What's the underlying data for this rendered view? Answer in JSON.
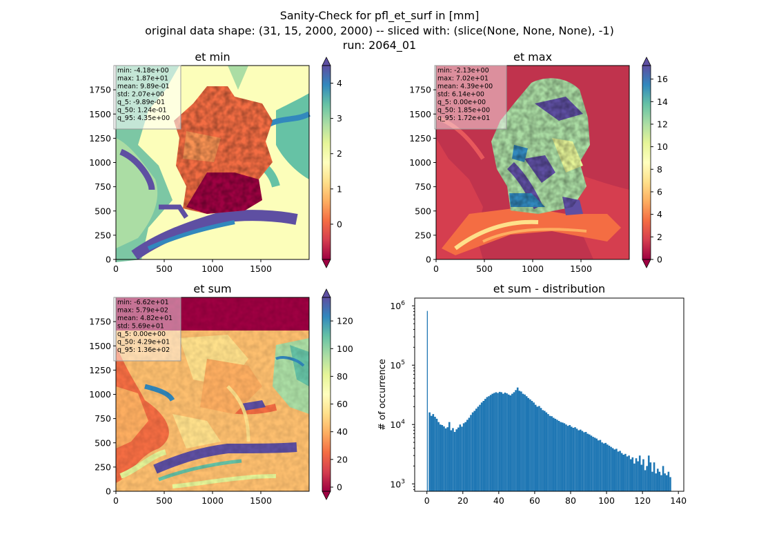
{
  "figure": {
    "title_lines": [
      "Sanity-Check for pfl_et_surf in [mm]",
      "original data shape: (31, 15, 2000, 2000) -- sliced with: (slice(None, None, None), -1)",
      "run: 2064_01"
    ]
  },
  "colors": {
    "spectral": [
      "#9e0142",
      "#d53e4f",
      "#f46d43",
      "#fdae61",
      "#fee08b",
      "#ffffbf",
      "#e6f598",
      "#abdda4",
      "#66c2a5",
      "#3288bd",
      "#5e4fa2"
    ],
    "histogram_bar": "#1f77b4"
  },
  "chart_data": [
    {
      "type": "heatmap",
      "title": "et min",
      "x_ticks": [
        "0",
        "500",
        "1000",
        "1500"
      ],
      "y_ticks": [
        "0",
        "250",
        "500",
        "750",
        "1000",
        "1250",
        "1500",
        "1750"
      ],
      "xlim": [
        0,
        2000
      ],
      "ylim": [
        0,
        2000
      ],
      "colorbar": {
        "range": [
          -1,
          4.5
        ],
        "ticks": [
          "4",
          "3",
          "2",
          "1",
          "0"
        ],
        "tick_values": [
          4,
          3,
          2,
          1,
          0
        ],
        "extend": "both"
      },
      "stats": [
        "min: -4.18e+00",
        "max: 1.87e+01",
        "mean: 9.89e-01",
        "std: 2.07e+00",
        "q_5: -9.89e-01",
        "q_50: 1.24e-01",
        "q_95: 4.35e+00"
      ]
    },
    {
      "type": "heatmap",
      "title": "et max",
      "x_ticks": [
        "0",
        "500",
        "1000",
        "1500"
      ],
      "y_ticks": [
        "0",
        "250",
        "500",
        "750",
        "1000",
        "1250",
        "1500",
        "1750"
      ],
      "xlim": [
        0,
        2000
      ],
      "ylim": [
        0,
        2000
      ],
      "colorbar": {
        "range": [
          0,
          17.2
        ],
        "ticks": [
          "16",
          "14",
          "12",
          "10",
          "8",
          "6",
          "4",
          "2",
          "0"
        ],
        "tick_values": [
          16,
          14,
          12,
          10,
          8,
          6,
          4,
          2,
          0
        ],
        "extend": "both"
      },
      "stats": [
        "min: -2.13e+00",
        "max: 7.02e+01",
        "mean: 4.39e+00",
        "std: 6.14e+00",
        "q_5: 0.00e+00",
        "q_50: 1.85e+00",
        "q_95: 1.72e+01"
      ]
    },
    {
      "type": "heatmap",
      "title": "et sum",
      "x_ticks": [
        "0",
        "500",
        "1000",
        "1500"
      ],
      "y_ticks": [
        "0",
        "250",
        "500",
        "750",
        "1000",
        "1250",
        "1500",
        "1750"
      ],
      "xlim": [
        0,
        2000
      ],
      "ylim": [
        0,
        2000
      ],
      "colorbar": {
        "range": [
          -3,
          137
        ],
        "ticks": [
          "120",
          "100",
          "80",
          "60",
          "40",
          "20",
          "0"
        ],
        "tick_values": [
          120,
          100,
          80,
          60,
          40,
          20,
          0
        ],
        "extend": "both"
      },
      "stats": [
        "min: -6.62e+01",
        "max: 5.79e+02",
        "mean: 4.82e+01",
        "std: 5.69e+01",
        "q_5: 0.00e+00",
        "q_50: 4.29e+01",
        "q_95: 1.36e+02"
      ]
    },
    {
      "type": "bar",
      "title": "et sum - distribution",
      "ylabel": "# of occurrence",
      "xlabel": "",
      "x_ticks": [
        0,
        20,
        40,
        60,
        80,
        100,
        120,
        140
      ],
      "xlim": [
        -6.8,
        143
      ],
      "y_scale": "log",
      "ylim": [
        750,
        1350000
      ],
      "y_tick_base": "10",
      "y_tick_exponents": [
        "3",
        "4",
        "5",
        "6"
      ],
      "bin_width": 0.5,
      "x": [
        0,
        1,
        2,
        3,
        4,
        5,
        6,
        7,
        8,
        9,
        10,
        11,
        12,
        13,
        14,
        15,
        16,
        17,
        18,
        19,
        20,
        21,
        22,
        23,
        24,
        25,
        26,
        27,
        28,
        29,
        30,
        31,
        32,
        33,
        34,
        35,
        36,
        37,
        38,
        39,
        40,
        41,
        42,
        43,
        44,
        45,
        46,
        47,
        48,
        49,
        50,
        51,
        52,
        53,
        54,
        55,
        56,
        57,
        58,
        59,
        60,
        61,
        62,
        63,
        64,
        65,
        66,
        67,
        68,
        69,
        70,
        71,
        72,
        73,
        74,
        75,
        76,
        77,
        78,
        79,
        80,
        81,
        82,
        83,
        84,
        85,
        86,
        87,
        88,
        89,
        90,
        91,
        92,
        93,
        94,
        95,
        96,
        97,
        98,
        99,
        100,
        101,
        102,
        103,
        104,
        105,
        106,
        107,
        108,
        109,
        110,
        111,
        112,
        113,
        114,
        115,
        116,
        117,
        118,
        119,
        120,
        121,
        122,
        123,
        124,
        125,
        126,
        127,
        128,
        129,
        130,
        131,
        132,
        133,
        134,
        135
      ],
      "values": [
        820000,
        16000,
        14000,
        15000,
        13500,
        12500,
        11000,
        10000,
        9800,
        9300,
        8600,
        9000,
        11000,
        8000,
        8700,
        7500,
        8300,
        8900,
        10000,
        9200,
        10500,
        11000,
        12000,
        13000,
        14500,
        16000,
        17000,
        18500,
        20000,
        21500,
        23500,
        25000,
        27000,
        29000,
        30000,
        31500,
        33000,
        34000,
        35000,
        34000,
        35500,
        35000,
        33000,
        34500,
        33500,
        32000,
        31000,
        33000,
        35000,
        38000,
        42000,
        37000,
        36000,
        33000,
        32000,
        30000,
        28000,
        26500,
        25000,
        23500,
        21500,
        20000,
        20500,
        19000,
        17500,
        17000,
        16000,
        15000,
        14000,
        13800,
        13000,
        12500,
        12000,
        11500,
        11000,
        10800,
        10500,
        10000,
        9500,
        9800,
        9200,
        8800,
        9000,
        8500,
        8000,
        8200,
        7800,
        7400,
        7500,
        7000,
        6800,
        6500,
        6200,
        6000,
        5800,
        5400,
        5500,
        5000,
        4800,
        4900,
        4600,
        4400,
        4200,
        4000,
        3800,
        3900,
        3500,
        3600,
        3300,
        3100,
        3200,
        2900,
        3000,
        2600,
        2800,
        2200,
        2700,
        2400,
        3000,
        2100,
        2600,
        1700,
        2000,
        3000,
        2300,
        1600,
        2300,
        1500,
        1800,
        1600,
        1400,
        2000,
        1500,
        1400,
        1600,
        1300
      ]
    }
  ]
}
